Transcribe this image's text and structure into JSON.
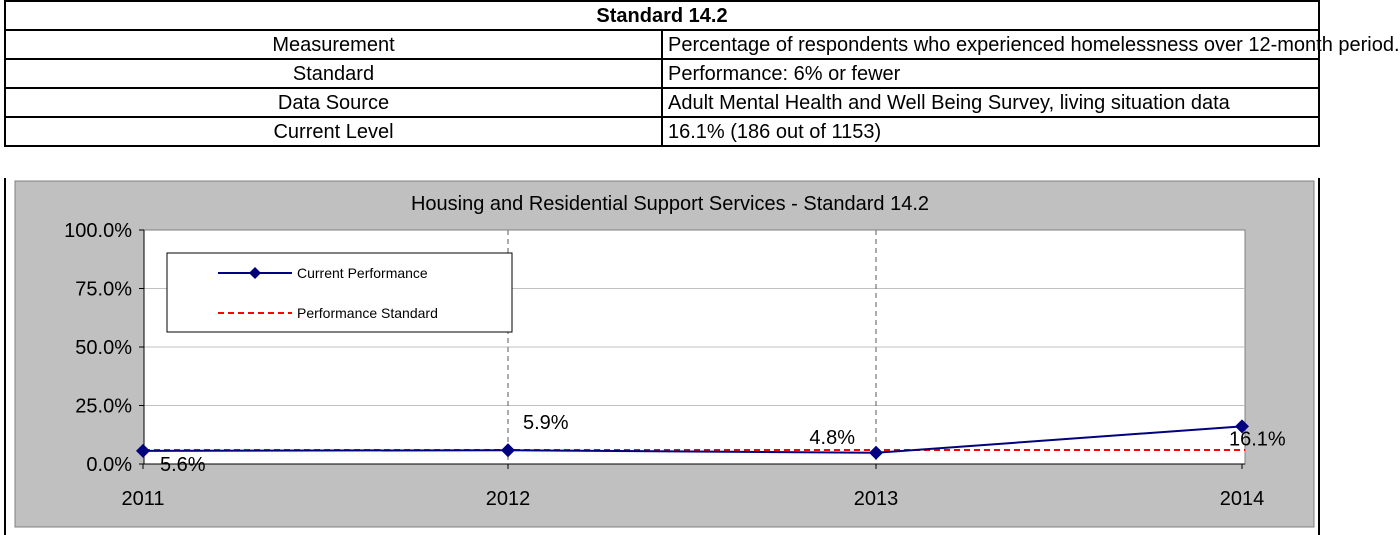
{
  "table": {
    "title": "Standard 14.2",
    "rows": [
      {
        "label": "Measurement",
        "value": "Percentage of respondents who experienced homelessness over 12-month period."
      },
      {
        "label": "Standard",
        "value": "Performance: 6% or fewer"
      },
      {
        "label": "Data Source",
        "value": "Adult Mental Health and Well Being Survey, living situation data"
      },
      {
        "label": "Current Level",
        "value": "16.1% (186 out of 1153)"
      }
    ]
  },
  "chart_data": {
    "type": "line",
    "title": "Housing and Residential Support Services - Standard 14.2",
    "categories": [
      "2011",
      "2012",
      "2013",
      "2014"
    ],
    "series": [
      {
        "name": "Current Performance",
        "values": [
          5.6,
          5.9,
          4.8,
          16.1
        ],
        "labels": [
          "5.6%",
          "5.9%",
          "4.8%",
          "16.1%"
        ],
        "color": "#000080",
        "style": "solid-diamond"
      },
      {
        "name": "Performance Standard",
        "values": [
          6,
          6,
          6,
          6
        ],
        "color": "#ff0000",
        "style": "dashed"
      }
    ],
    "ylim": [
      0,
      100
    ],
    "yticks": [
      0,
      25,
      50,
      75,
      100
    ],
    "ytick_labels": [
      "0.0%",
      "25.0%",
      "50.0%",
      "75.0%",
      "100.0%"
    ],
    "grid": "horizontal major, vertical dashed at 2012 and 2013",
    "legend": "top-left",
    "plot_bg": "#ffffff",
    "chart_bg": "#c0c0c0"
  }
}
